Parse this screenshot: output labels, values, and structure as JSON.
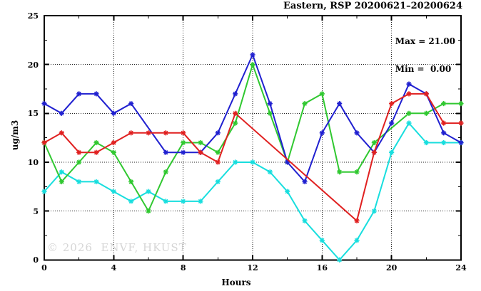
{
  "figure": {
    "annotation": {
      "max": "Max = 21.00",
      "min": "Min =  0.00"
    },
    "watermark": "© 2026  ENVF, HKUST"
  },
  "chart_data": {
    "type": "line",
    "title": "Eastern, RSP 20200621–20200624",
    "xlabel": "Hours",
    "ylabel": "ug/m3",
    "xlim": [
      0,
      24
    ],
    "ylim": [
      0,
      25
    ],
    "xticks": [
      0,
      4,
      8,
      12,
      16,
      20,
      24
    ],
    "yticks": [
      0,
      5,
      10,
      15,
      20,
      25
    ],
    "x_minor_ticks": [
      2,
      6,
      10,
      14,
      18,
      22
    ],
    "y_minor_ticks": [
      2.5,
      7.5,
      12.5,
      17.5,
      22.5
    ],
    "grid": true,
    "legend": "none",
    "marker": "asterisk",
    "stats": {
      "max": 21.0,
      "min": 0.0
    },
    "x": [
      0,
      1,
      2,
      3,
      4,
      5,
      6,
      7,
      8,
      9,
      10,
      11,
      12,
      13,
      14,
      15,
      16,
      17,
      18,
      19,
      20,
      21,
      22,
      23,
      24
    ],
    "series": [
      {
        "name": "blue",
        "color": "#2020d0",
        "values": [
          16,
          15,
          17,
          17,
          15,
          16,
          null,
          11,
          11,
          11,
          13,
          17,
          21,
          16,
          10,
          8,
          13,
          16,
          13,
          11,
          14,
          18,
          17,
          13,
          12
        ]
      },
      {
        "name": "red",
        "color": "#e02020",
        "values": [
          12,
          13,
          11,
          11,
          12,
          13,
          13,
          13,
          13,
          11,
          10,
          15,
          null,
          null,
          null,
          null,
          null,
          null,
          4,
          11,
          16,
          17,
          17,
          14,
          14
        ]
      },
      {
        "name": "green",
        "color": "#30c830",
        "values": [
          12,
          8,
          10,
          12,
          11,
          8,
          5,
          9,
          12,
          12,
          11,
          14,
          20,
          15,
          10,
          16,
          17,
          9,
          9,
          12,
          null,
          15,
          15,
          16,
          16
        ]
      },
      {
        "name": "cyan",
        "color": "#18dede",
        "values": [
          7,
          9,
          8,
          8,
          7,
          6,
          7,
          6,
          6,
          6,
          8,
          10,
          10,
          9,
          7,
          4,
          2,
          0,
          2,
          5,
          11,
          14,
          12,
          12,
          12
        ]
      }
    ]
  }
}
